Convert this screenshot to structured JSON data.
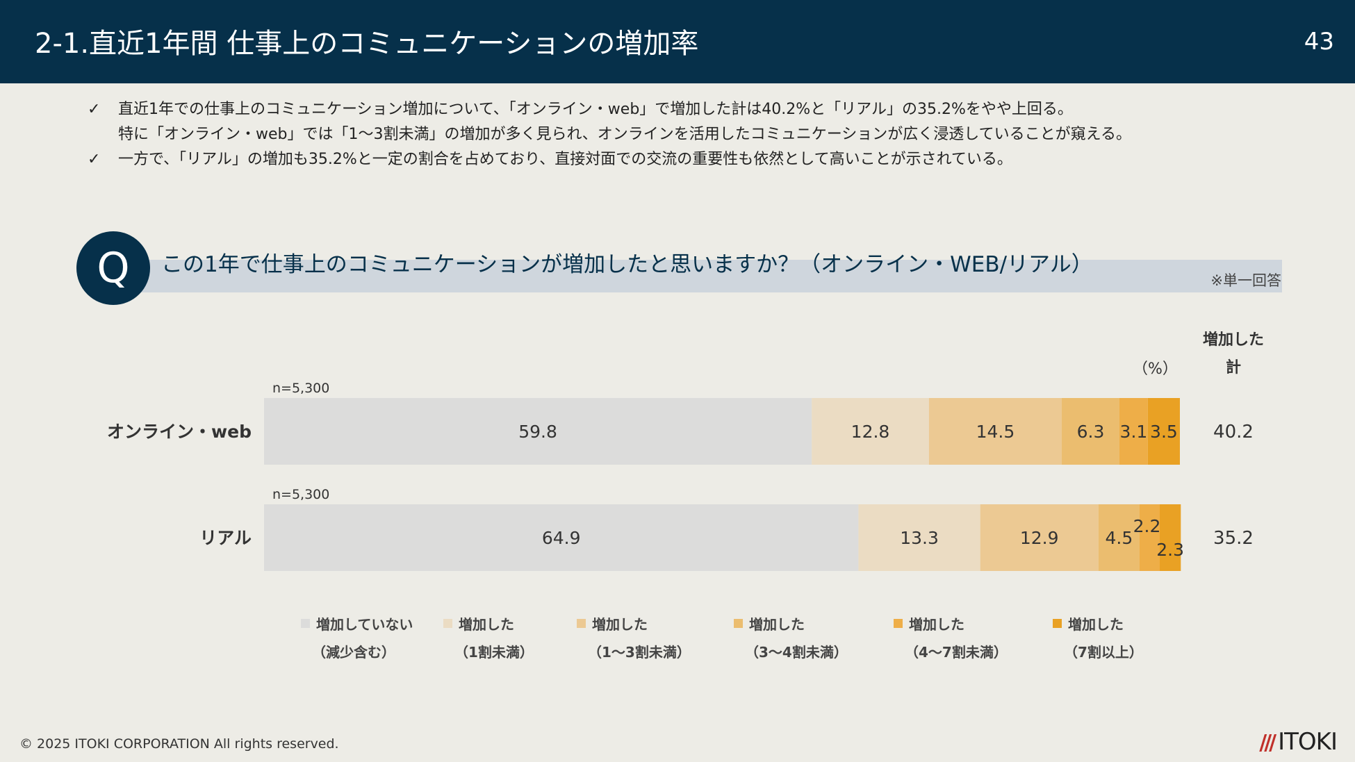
{
  "header": {
    "title": "2-1.直近1年間 仕事上のコミュニケーションの増加率",
    "page_number": "43"
  },
  "bullets": [
    {
      "check": "✓",
      "lines": [
        "直近1年での仕事上のコミュニケーション増加について、「オンライン・web」で増加した計は40.2%と「リアル」の35.2%をやや上回る。",
        "特に「オンライン・web」では「1～3割未満」の増加が多く見られ、オンラインを活用したコミュニケーションが広く浸透していることが窺える。"
      ]
    },
    {
      "check": "✓",
      "lines": [
        "一方で、「リアル」の増加も35.2%と一定の割合を占めており、直接対面での交流の重要性も依然として高いことが示されている。"
      ]
    }
  ],
  "question": {
    "marker": "Q",
    "text": "この1年で仕事上のコミュニケーションが増加したと思いますか？（オンライン・WEB/リアル）",
    "note": "※単一回答"
  },
  "chart_data": {
    "type": "bar",
    "orientation": "horizontal",
    "stacked": true,
    "unit_label": "（%）",
    "total_header": [
      "増加した",
      "計"
    ],
    "rows": [
      {
        "label": "オンライン・web",
        "n": "n=5,300",
        "values": [
          59.8,
          12.8,
          14.5,
          6.3,
          3.1,
          3.5
        ],
        "total": "40.2"
      },
      {
        "label": "リアル",
        "n": "n=5,300",
        "values": [
          64.9,
          13.3,
          12.9,
          4.5,
          2.2,
          2.3
        ],
        "total": "35.2"
      }
    ],
    "series": [
      {
        "name": "増加していない（減少含む）",
        "line1": "増加していない",
        "line2": "（減少含む）",
        "color": "#dcdcdb"
      },
      {
        "name": "増加した（1割未満）",
        "line1": "増加した",
        "line2": "（1割未満）",
        "color": "#ebdcc3"
      },
      {
        "name": "増加した（1～3割未満）",
        "line1": "増加した",
        "line2": "（1～3割未満）",
        "color": "#ecc993"
      },
      {
        "name": "増加した（3～4割未満）",
        "line1": "増加した",
        "line2": "（3～4割未満）",
        "color": "#ebbd6f"
      },
      {
        "name": "増加した（4～7割未満）",
        "line1": "増加した",
        "line2": "（4～7割未満）",
        "color": "#eeae48"
      },
      {
        "name": "増加した（7割以上）",
        "line1": "増加した",
        "line2": "（7割以上）",
        "color": "#e9a124"
      }
    ],
    "xlim": [
      0,
      100
    ]
  },
  "footer": {
    "copyright": "© 2025 ITOKI CORPORATION All rights reserved.",
    "logo_text": "ITOKI",
    "logo_mark": "///"
  }
}
